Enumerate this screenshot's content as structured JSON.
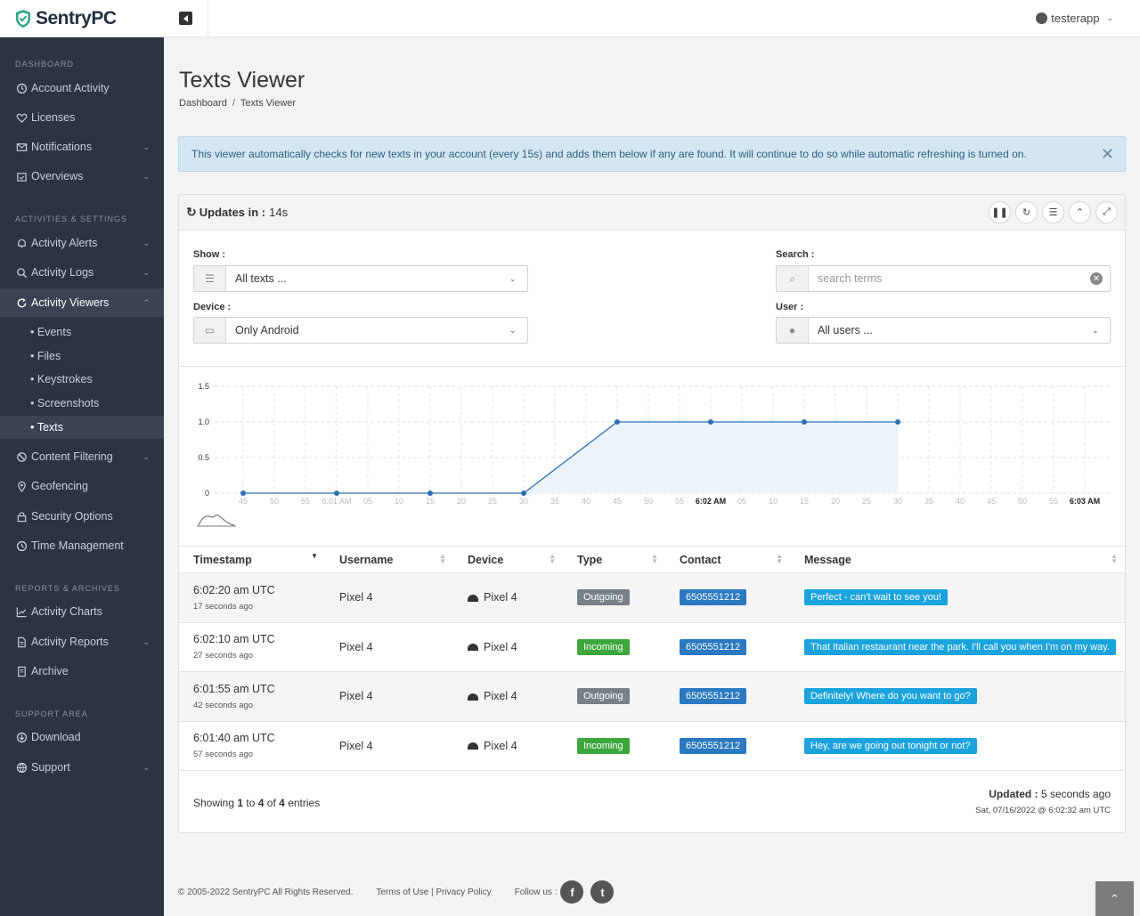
{
  "brand": {
    "name_a": "Sentry",
    "name_b": "PC"
  },
  "topbar": {
    "username": "testerapp"
  },
  "sidebar": {
    "sections": [
      "DASHBOARD",
      "ACTIVITIES & SETTINGS",
      "REPORTS & ARCHIVES",
      "SUPPORT AREA"
    ],
    "items": [
      {
        "label": "Account Activity",
        "icon": "history-icon"
      },
      {
        "label": "Licenses",
        "icon": "heart-icon"
      },
      {
        "label": "Notifications",
        "icon": "envelope-icon"
      },
      {
        "label": "Overviews",
        "icon": "calendar-icon"
      },
      {
        "label": "Activity Alerts",
        "icon": "bell-icon"
      },
      {
        "label": "Activity Logs",
        "icon": "search-icon"
      },
      {
        "label": "Activity Viewers",
        "icon": "refresh-icon"
      },
      {
        "label": "Content Filtering",
        "icon": "ban-icon"
      },
      {
        "label": "Geofencing",
        "icon": "map-pin-icon"
      },
      {
        "label": "Security Options",
        "icon": "lock-icon"
      },
      {
        "label": "Time Management",
        "icon": "clock-icon"
      },
      {
        "label": "Activity Charts",
        "icon": "line-chart-icon"
      },
      {
        "label": "Activity Reports",
        "icon": "file-icon"
      },
      {
        "label": "Archive",
        "icon": "archive-icon"
      },
      {
        "label": "Download",
        "icon": "download-icon"
      },
      {
        "label": "Support",
        "icon": "globe-icon"
      }
    ],
    "subitems": [
      "Events",
      "Files",
      "Keystrokes",
      "Screenshots",
      "Texts"
    ]
  },
  "page": {
    "title": "Texts Viewer",
    "breadcrumb": [
      "Dashboard",
      "Texts Viewer"
    ],
    "alert": "This viewer automatically checks for new texts in your account (every 15s) and adds them below if any are found.  It will continue to do so while automatic refreshing is turned on."
  },
  "card": {
    "updates_label": "Updates in :",
    "countdown": "14s",
    "show_label": "Show :",
    "show_value": "All texts ...",
    "device_label": "Device :",
    "device_value": "Only Android",
    "search_label": "Search :",
    "search_placeholder": "search terms",
    "user_label": "User :",
    "user_value": "All users ..."
  },
  "chart_data": {
    "type": "area",
    "yticks": [
      "0",
      "0.5",
      "1.0",
      "1.5"
    ],
    "ylim": [
      0,
      1.5
    ],
    "x_ticks": [
      "45",
      "50",
      "55",
      "6:01 AM",
      "05",
      "10",
      "15",
      "20",
      "25",
      "30",
      "35",
      "40",
      "45",
      "50",
      "55",
      "6:02 AM",
      "05",
      "10",
      "15",
      "20",
      "25",
      "30",
      "35",
      "40",
      "45",
      "50",
      "55",
      "6:03 AM"
    ],
    "x_bold": [
      "6:02 AM",
      "6:03 AM"
    ],
    "x": [
      "6:00:45",
      "6:01:00",
      "6:01:15",
      "6:01:30",
      "6:01:45",
      "6:02:00",
      "6:02:15",
      "6:02:30"
    ],
    "values": [
      0,
      0,
      0,
      0,
      1,
      1,
      1,
      1
    ],
    "color": "#2a6fb0"
  },
  "table": {
    "columns": [
      "Timestamp",
      "Username",
      "Device",
      "Type",
      "Contact",
      "Message"
    ],
    "rows": [
      {
        "time": "6:02:20 am UTC",
        "ago": "17 seconds ago",
        "username": "Pixel 4",
        "device": "Pixel 4",
        "type": "Outgoing",
        "contact": "6505551212",
        "message": "Perfect - can't wait to see you!"
      },
      {
        "time": "6:02:10 am UTC",
        "ago": "27 seconds ago",
        "username": "Pixel 4",
        "device": "Pixel 4",
        "type": "Incoming",
        "contact": "6505551212",
        "message": "That Italian restaurant near the park. I'll call you when I'm on my way."
      },
      {
        "time": "6:01:55 am UTC",
        "ago": "42 seconds ago",
        "username": "Pixel 4",
        "device": "Pixel 4",
        "type": "Outgoing",
        "contact": "6505551212",
        "message": "Definitely! Where do you want to go?"
      },
      {
        "time": "6:01:40 am UTC",
        "ago": "57 seconds ago",
        "username": "Pixel 4",
        "device": "Pixel 4",
        "type": "Incoming",
        "contact": "6505551212",
        "message": "Hey, are we going out tonight or not?"
      }
    ],
    "showing": {
      "pre": "Showing",
      "from": "1",
      "to_word": "to",
      "to": "4",
      "of_word": "of",
      "total": "4",
      "post": "entries"
    },
    "updated_label": "Updated :",
    "updated_value": "5 seconds ago",
    "updated_date": "Sat, 07/16/2022 @ 6:02:32 am UTC"
  },
  "footer": {
    "copyright": "© 2005-2022 SentryPC All Rights Reserved.",
    "terms": "Terms of Use",
    "pipe": "|",
    "privacy": "Privacy Policy",
    "follow": "Follow us :"
  }
}
